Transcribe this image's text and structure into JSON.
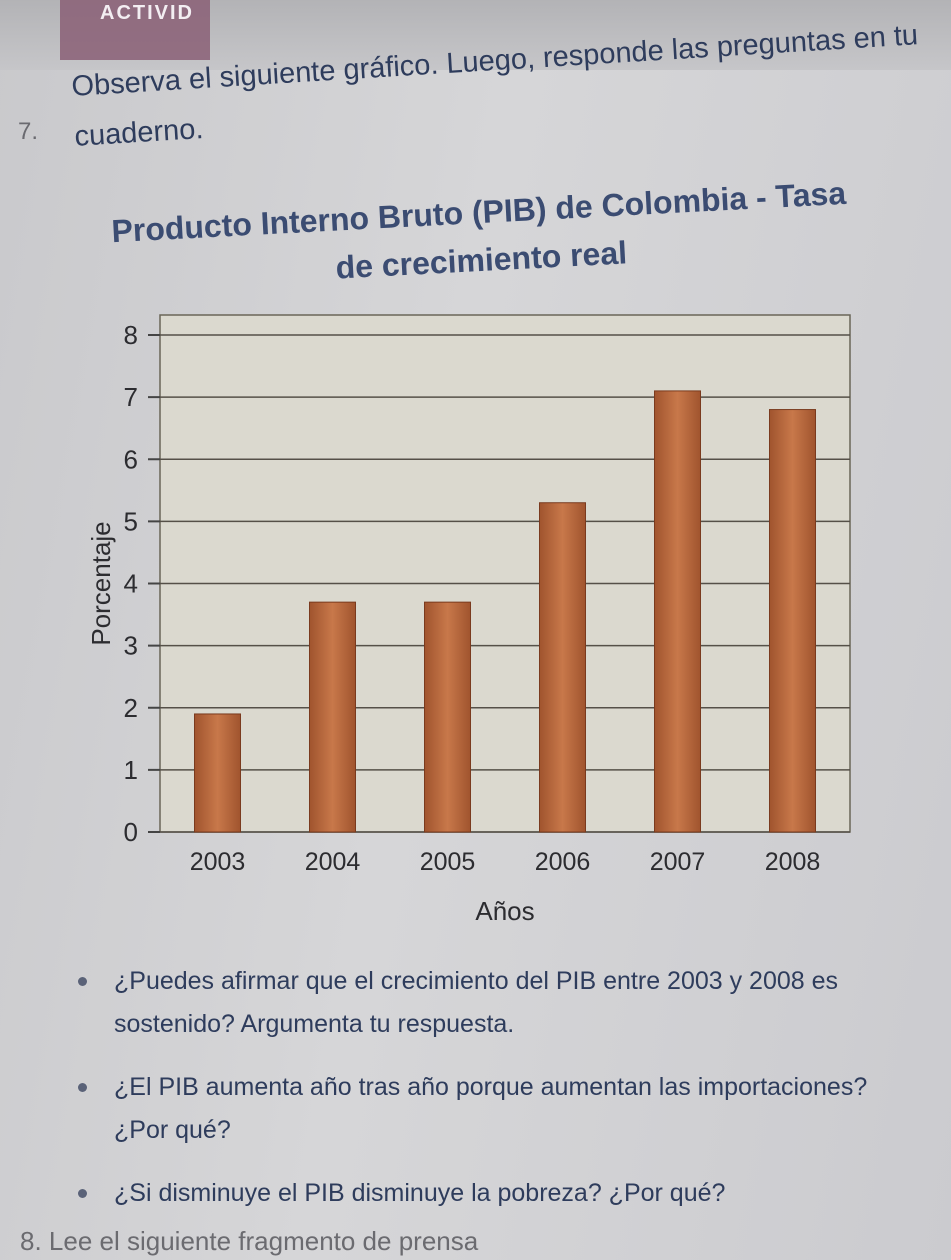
{
  "header": {
    "activity_label": "ACTIVID"
  },
  "exercise": {
    "number": "7.",
    "instruction": "Observa el siguiente gráfico. Luego, responde las preguntas en tu cuaderno."
  },
  "chart_data": {
    "type": "bar",
    "title": "Producto Interno Bruto (PIB) de Colombia - Tasa de crecimiento real",
    "xlabel": "Años",
    "ylabel": "Porcentaje",
    "categories": [
      "2003",
      "2004",
      "2005",
      "2006",
      "2007",
      "2008"
    ],
    "values": [
      1.9,
      3.7,
      3.7,
      5.3,
      7.1,
      6.8
    ],
    "yticks": [
      0,
      1,
      2,
      3,
      4,
      5,
      6,
      7,
      8
    ],
    "ylim": [
      0,
      8
    ],
    "grid": true,
    "legend": "none",
    "bar_color": "#a0542e",
    "bar_highlight": "#c8784a",
    "plot_background": "#dbd9cf"
  },
  "questions": [
    "¿Puedes afirmar que el crecimiento del PIB entre 2003 y 2008 es sostenido? Argumenta tu respuesta.",
    "¿El PIB aumenta año tras año porque aumentan las importaciones? ¿Por qué?",
    "¿Si disminuye el PIB disminuye la pobreza? ¿Por qué?"
  ],
  "next_exercise": "8.  Lee el siguiente fragmento de prensa"
}
